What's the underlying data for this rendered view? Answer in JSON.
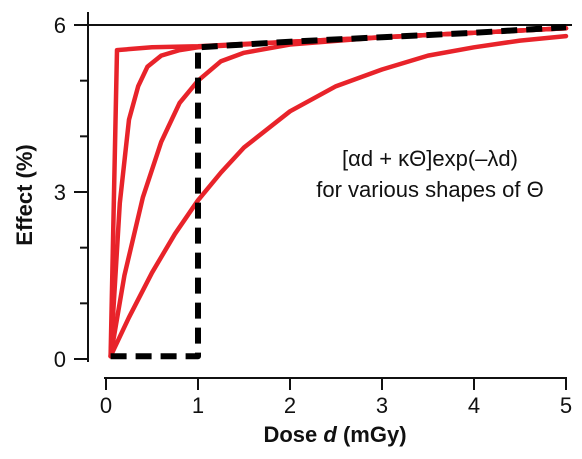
{
  "chart_data": {
    "type": "line",
    "title": "",
    "xlabel_parts": [
      "Dose ",
      "d",
      " (mGy)"
    ],
    "ylabel": "Effect (%)",
    "xlim": [
      0,
      5
    ],
    "ylim": [
      0,
      6
    ],
    "x_ticks": [
      0,
      1,
      2,
      3,
      4,
      5
    ],
    "x_tick_labels": [
      "0",
      "1",
      "2",
      "3",
      "4",
      "5"
    ],
    "y_ticks": [
      0,
      3,
      6
    ],
    "y_tick_labels": [
      "0",
      "3",
      "6"
    ],
    "y_minor_ticks": [
      1,
      2,
      4,
      5
    ],
    "grid": false,
    "annotation_line1": "[αd + κΘ]exp(–λd)",
    "annotation_line2": "for various shapes of Θ",
    "series_colors": {
      "curves": "#e8232a",
      "step": "#000000"
    },
    "series": [
      {
        "style": "solid",
        "color": "#e8232a",
        "points": [
          [
            0.05,
            0.05
          ],
          [
            0.12,
            5.55
          ],
          [
            0.5,
            5.6
          ],
          [
            1.0,
            5.62
          ],
          [
            2.0,
            5.7
          ],
          [
            3.0,
            5.78
          ],
          [
            4.0,
            5.86
          ],
          [
            5.0,
            5.94
          ]
        ]
      },
      {
        "style": "solid",
        "color": "#e8232a",
        "points": [
          [
            0.05,
            0.05
          ],
          [
            0.15,
            2.8
          ],
          [
            0.25,
            4.3
          ],
          [
            0.35,
            4.9
          ],
          [
            0.45,
            5.25
          ],
          [
            0.6,
            5.45
          ],
          [
            0.8,
            5.55
          ],
          [
            1.0,
            5.6
          ],
          [
            2.0,
            5.7
          ],
          [
            3.0,
            5.78
          ],
          [
            4.0,
            5.86
          ],
          [
            5.0,
            5.94
          ]
        ]
      },
      {
        "style": "solid",
        "color": "#e8232a",
        "points": [
          [
            0.05,
            0.05
          ],
          [
            0.2,
            1.5
          ],
          [
            0.4,
            2.9
          ],
          [
            0.6,
            3.9
          ],
          [
            0.8,
            4.6
          ],
          [
            1.0,
            5.0
          ],
          [
            1.25,
            5.35
          ],
          [
            1.5,
            5.5
          ],
          [
            2.0,
            5.65
          ],
          [
            3.0,
            5.78
          ],
          [
            4.0,
            5.86
          ],
          [
            5.0,
            5.94
          ]
        ]
      },
      {
        "style": "solid",
        "color": "#e8232a",
        "points": [
          [
            0.05,
            0.05
          ],
          [
            0.25,
            0.75
          ],
          [
            0.5,
            1.55
          ],
          [
            0.75,
            2.25
          ],
          [
            1.0,
            2.85
          ],
          [
            1.25,
            3.35
          ],
          [
            1.5,
            3.8
          ],
          [
            2.0,
            4.45
          ],
          [
            2.5,
            4.9
          ],
          [
            3.0,
            5.2
          ],
          [
            3.5,
            5.45
          ],
          [
            4.0,
            5.6
          ],
          [
            4.5,
            5.72
          ],
          [
            5.0,
            5.8
          ]
        ]
      },
      {
        "style": "dashed",
        "color": "#000000",
        "points": [
          [
            0.05,
            0.05
          ],
          [
            1.0,
            0.05
          ],
          [
            1.0,
            5.6
          ],
          [
            2.0,
            5.7
          ],
          [
            3.0,
            5.78
          ],
          [
            4.0,
            5.86
          ],
          [
            5.0,
            5.96
          ]
        ]
      }
    ]
  }
}
